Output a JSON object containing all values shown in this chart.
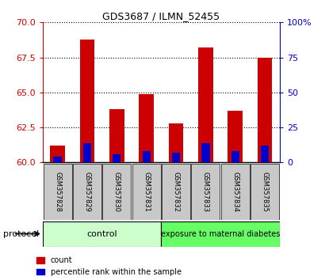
{
  "title": "GDS3687 / ILMN_52455",
  "samples": [
    "GSM357828",
    "GSM357829",
    "GSM357830",
    "GSM357831",
    "GSM357832",
    "GSM357833",
    "GSM357834",
    "GSM357835"
  ],
  "count_values": [
    61.2,
    68.8,
    63.8,
    64.9,
    62.8,
    68.2,
    63.7,
    67.5
  ],
  "percentile_values": [
    4,
    14,
    6,
    8,
    7,
    14,
    8,
    12
  ],
  "ylim_left": [
    60,
    70
  ],
  "ylim_right": [
    0,
    100
  ],
  "yticks_left": [
    60,
    62.5,
    65,
    67.5,
    70
  ],
  "yticks_right": [
    0,
    25,
    50,
    75,
    100
  ],
  "bar_width": 0.5,
  "red_color": "#cc0000",
  "blue_color": "#0000cc",
  "control_label": "control",
  "exposure_label": "exposure to maternal diabetes",
  "control_color": "#ccffcc",
  "exposure_color": "#66ff66",
  "protocol_label": "protocol",
  "legend_count": "count",
  "legend_percentile": "percentile rank within the sample",
  "tick_color_left": "#cc0000",
  "tick_color_right": "#0000cc",
  "base_value": 60,
  "n_control": 4,
  "n_exposure": 4,
  "sample_box_color": "#c8c8c8",
  "ytick_labels_right": [
    "0",
    "25",
    "50",
    "75",
    "100%"
  ]
}
